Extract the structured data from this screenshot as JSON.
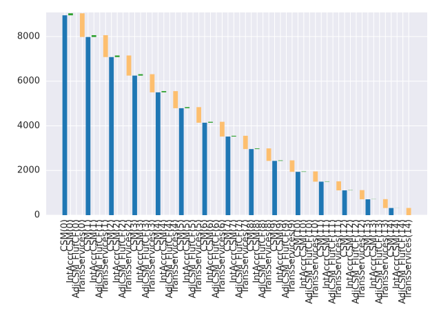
{
  "chart_data": {
    "type": "waterfall",
    "categories": [
      "CSM(0)",
      "IntAccrCSM(0)",
      "AdjCSM_FlufCF(0)",
      "TransServices(0)",
      "CSM(1)",
      "IntAccrCSM(1)",
      "AdjCSM_FlufCF(1)",
      "TransServices(1)",
      "CSM(2)",
      "IntAccrCSM(2)",
      "AdjCSM_FlufCF(2)",
      "TransServices(2)",
      "CSM(3)",
      "IntAccrCSM(3)",
      "AdjCSM_FlufCF(3)",
      "TransServices(3)",
      "CSM(4)",
      "IntAccrCSM(4)",
      "AdjCSM_FlufCF(4)",
      "TransServices(4)",
      "CSM(5)",
      "IntAccrCSM(5)",
      "AdjCSM_FlufCF(5)",
      "TransServices(5)",
      "CSM(6)",
      "IntAccrCSM(6)",
      "AdjCSM_FlufCF(6)",
      "TransServices(6)",
      "CSM(7)",
      "IntAccrCSM(7)",
      "AdjCSM_FlufCF(7)",
      "TransServices(7)",
      "CSM(8)",
      "IntAccrCSM(8)",
      "AdjCSM_FlufCF(8)",
      "TransServices(8)",
      "CSM(9)",
      "IntAccrCSM(9)",
      "AdjCSM_FlufCF(9)",
      "TransServices(9)",
      "CSM(10)",
      "IntAccrCSM(10)",
      "AdjCSM_FlufCF(10)",
      "TransServices(10)",
      "CSM(11)",
      "IntAccrCSM(11)",
      "AdjCSM_FlufCF(11)",
      "TransServices(11)",
      "CSM(12)",
      "IntAccrCSM(12)",
      "AdjCSM_FlufCF(12)",
      "TransServices(12)",
      "CSM(13)",
      "IntAccrCSM(13)",
      "AdjCSM_FlufCF(13)",
      "TransServices(13)",
      "CSM(14)",
      "IntAccrCSM(14)",
      "AdjCSM_FlufCF(14)",
      "TransServices(14)"
    ],
    "values": [
      8950,
      90,
      0,
      -1060,
      7980,
      80,
      0,
      -980,
      7080,
      71,
      0,
      -901,
      6250,
      63,
      0,
      -813,
      5500,
      55,
      0,
      -765,
      4790,
      48,
      0,
      -698,
      4140,
      41,
      0,
      -661,
      3520,
      35,
      0,
      -595,
      2960,
      30,
      0,
      -560,
      2430,
      24,
      0,
      -514,
      1940,
      19,
      0,
      -459,
      1500,
      15,
      0,
      -405,
      1110,
      11,
      0,
      -411,
      710,
      7,
      0,
      -397,
      320,
      3,
      0,
      -323
    ],
    "total_color": "#1f77b4",
    "increase_color": "#2ca02c",
    "decrease_color": "#fdbf6f",
    "ylim": [
      0,
      9080
    ],
    "yticks": [
      0,
      2000,
      4000,
      6000,
      8000
    ],
    "grid": true
  }
}
